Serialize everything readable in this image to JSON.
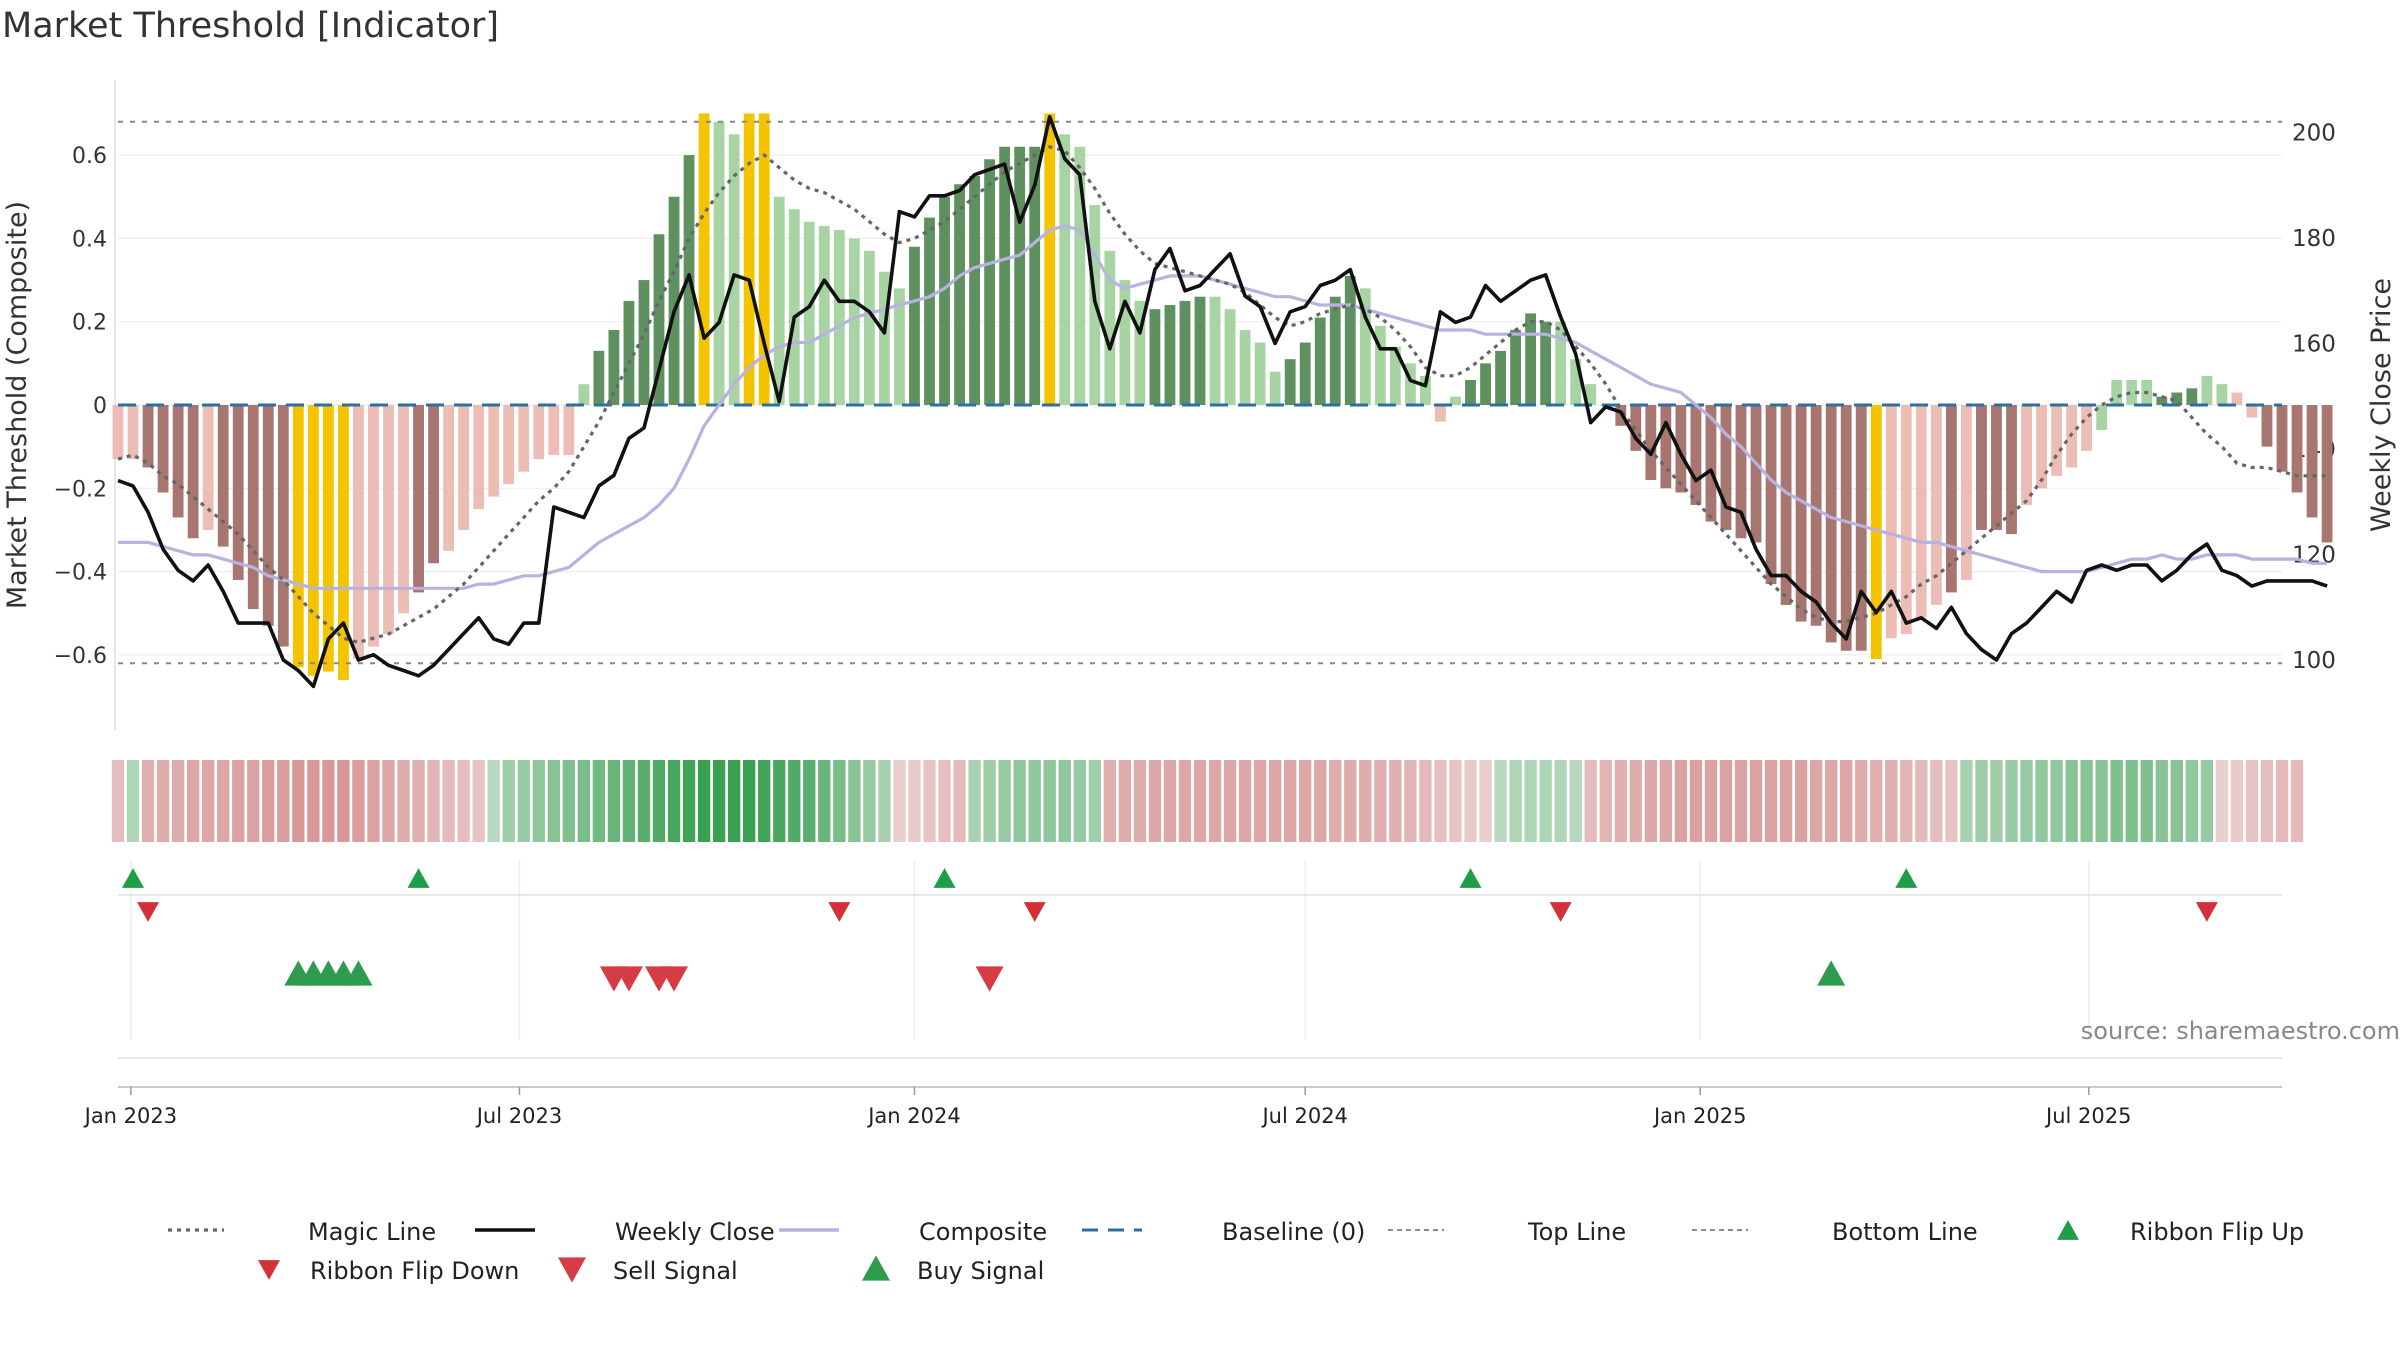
{
  "title": "Market Threshold [Indicator]",
  "source": "source: sharemaestro.com",
  "colors": {
    "up_strong": "#5f9160",
    "up_light": "#a8d4a3",
    "down_strong": "#a87670",
    "down_light": "#ecbdb5",
    "extreme": "#f5c400",
    "weekly_close": "#111111",
    "composite": "#b9b2e0",
    "magic_line": "#666666",
    "baseline": "#2f6f9f",
    "threshold_line": "#888888",
    "buy": "#2e9c4c",
    "sell": "#d63c45",
    "flip_up": "#1f9e48",
    "flip_down": "#d4303a"
  },
  "chart_data": {
    "type": "bar",
    "title": "Market Threshold [Indicator]",
    "ylabel": "Market Threshold (Composite)",
    "y2label": "Weekly Close Price",
    "ylim": [
      -0.78,
      0.78
    ],
    "y2lim": [
      88,
      212
    ],
    "x_range": [
      "2022-12-26",
      "2025-09-29"
    ],
    "yticks": [
      {
        "v": 0.6,
        "t": "0.6"
      },
      {
        "v": 0.4,
        "t": "0.4"
      },
      {
        "v": 0.2,
        "t": "0.2"
      },
      {
        "v": 0,
        "t": "0"
      },
      {
        "v": -0.2,
        "t": "−0.2"
      },
      {
        "v": -0.4,
        "t": "−0.4"
      },
      {
        "v": -0.6,
        "t": "−0.6"
      }
    ],
    "y2ticks": [
      {
        "v": 200,
        "t": "200"
      },
      {
        "v": 180,
        "t": "180"
      },
      {
        "v": 160,
        "t": "160"
      },
      {
        "v": 140,
        "t": "140"
      },
      {
        "v": 120,
        "t": "120"
      },
      {
        "v": 100,
        "t": "100"
      }
    ],
    "xticks": [
      {
        "d": "2023-01-01",
        "t": "Jan 2023"
      },
      {
        "d": "2023-07-01",
        "t": "Jul 2023"
      },
      {
        "d": "2024-01-01",
        "t": "Jan 2024"
      },
      {
        "d": "2024-07-01",
        "t": "Jul 2024"
      },
      {
        "d": "2025-01-01",
        "t": "Jan 2025"
      },
      {
        "d": "2025-07-01",
        "t": "Jul 2025"
      }
    ],
    "top_line": 0.68,
    "bottom_line": -0.62,
    "baseline": 0,
    "start_date": "2022-12-26",
    "week_step_days": 7,
    "composite_bars": [
      -0.13,
      -0.13,
      -0.15,
      -0.21,
      -0.27,
      -0.32,
      -0.3,
      -0.34,
      -0.42,
      -0.49,
      -0.53,
      -0.58,
      -0.63,
      -0.65,
      -0.64,
      -0.66,
      -0.61,
      -0.58,
      -0.55,
      -0.5,
      -0.45,
      -0.38,
      -0.35,
      -0.3,
      -0.25,
      -0.22,
      -0.19,
      -0.16,
      -0.13,
      -0.12,
      -0.12,
      0.05,
      0.13,
      0.18,
      0.25,
      0.3,
      0.41,
      0.5,
      0.6,
      0.7,
      0.68,
      0.65,
      0.7,
      0.7,
      0.5,
      0.47,
      0.44,
      0.43,
      0.42,
      0.4,
      0.37,
      0.32,
      0.28,
      0.38,
      0.45,
      0.5,
      0.53,
      0.55,
      0.59,
      0.62,
      0.62,
      0.62,
      0.7,
      0.65,
      0.62,
      0.48,
      0.37,
      0.3,
      0.25,
      0.23,
      0.24,
      0.25,
      0.26,
      0.26,
      0.23,
      0.18,
      0.15,
      0.08,
      0.11,
      0.15,
      0.21,
      0.26,
      0.31,
      0.28,
      0.19,
      0.14,
      0.1,
      0.07,
      -0.04,
      0.02,
      0.06,
      0.1,
      0.13,
      0.18,
      0.22,
      0.2,
      0.2,
      0.11,
      0.05,
      0.0,
      -0.05,
      -0.11,
      -0.18,
      -0.2,
      -0.21,
      -0.24,
      -0.28,
      -0.3,
      -0.32,
      -0.33,
      -0.43,
      -0.48,
      -0.52,
      -0.53,
      -0.57,
      -0.59,
      -0.59,
      -0.61,
      -0.56,
      -0.55,
      -0.51,
      -0.48,
      -0.45,
      -0.42,
      -0.3,
      -0.3,
      -0.31,
      -0.24,
      -0.2,
      -0.17,
      -0.15,
      -0.11,
      -0.06,
      0.06,
      0.06,
      0.06,
      0.02,
      0.03,
      0.04,
      0.07,
      0.05,
      0.03,
      -0.03,
      -0.1,
      -0.16,
      -0.21,
      -0.27,
      -0.33
    ],
    "bar_styles": [
      "dl",
      "dl",
      "ds",
      "ds",
      "ds",
      "ds",
      "dl",
      "ds",
      "ds",
      "ds",
      "ds",
      "ds",
      "ex",
      "ex",
      "ex",
      "ex",
      "dl",
      "dl",
      "dl",
      "dl",
      "ds",
      "ds",
      "dl",
      "dl",
      "dl",
      "dl",
      "dl",
      "dl",
      "dl",
      "dl",
      "dl",
      "ul",
      "us",
      "us",
      "us",
      "us",
      "us",
      "us",
      "us",
      "ex",
      "ul",
      "ul",
      "ex",
      "ex",
      "ul",
      "ul",
      "ul",
      "ul",
      "ul",
      "ul",
      "ul",
      "ul",
      "ul",
      "us",
      "us",
      "us",
      "us",
      "us",
      "us",
      "us",
      "us",
      "us",
      "ex",
      "ul",
      "ul",
      "ul",
      "ul",
      "ul",
      "ul",
      "us",
      "us",
      "us",
      "us",
      "ul",
      "ul",
      "ul",
      "ul",
      "ul",
      "us",
      "us",
      "us",
      "us",
      "us",
      "ul",
      "ul",
      "ul",
      "ul",
      "ul",
      "dl",
      "ul",
      "us",
      "us",
      "us",
      "us",
      "us",
      "us",
      "ul",
      "ul",
      "ul",
      "ds",
      "ds",
      "ds",
      "ds",
      "ds",
      "ds",
      "ds",
      "ds",
      "ds",
      "ds",
      "ds",
      "ds",
      "ds",
      "ds",
      "ds",
      "ds",
      "ds",
      "ds",
      "ex",
      "dl",
      "dl",
      "dl",
      "dl",
      "ds",
      "dl",
      "ds",
      "ds",
      "ds",
      "dl",
      "dl",
      "dl",
      "dl",
      "dl",
      "ul",
      "ul",
      "ul",
      "ul",
      "us",
      "us",
      "us",
      "ul",
      "ul",
      "dl",
      "dl",
      "ds",
      "ds",
      "ds",
      "ds",
      "ds"
    ],
    "weekly_close": [
      134,
      133,
      128,
      121,
      117,
      115,
      118,
      113,
      107,
      107,
      107,
      100,
      98,
      95,
      104,
      107,
      100,
      101,
      99,
      98,
      97,
      99,
      102,
      105,
      108,
      104,
      103,
      107,
      107,
      129,
      128,
      127,
      133,
      135,
      142,
      144,
      155,
      166,
      173,
      161,
      164,
      173,
      172,
      160,
      149,
      165,
      167,
      172,
      168,
      168,
      166,
      162,
      185,
      184,
      188,
      188,
      189,
      192,
      193,
      194,
      183,
      190,
      203,
      195,
      192,
      168,
      159,
      168,
      162,
      174,
      178,
      170,
      171,
      174,
      177,
      169,
      167,
      160,
      166,
      167,
      171,
      172,
      174,
      165,
      159,
      159,
      153,
      152,
      166,
      164,
      165,
      171,
      168,
      170,
      172,
      173,
      165,
      158,
      145,
      148,
      147,
      142,
      139,
      145,
      139,
      134,
      136,
      129,
      128,
      121,
      116,
      116,
      113,
      111,
      107,
      104,
      113,
      109,
      113,
      107,
      108,
      106,
      110,
      105,
      102,
      100,
      105,
      107,
      110,
      113,
      111,
      117,
      118,
      117,
      118,
      118,
      115,
      117,
      120,
      122,
      117,
      116,
      114,
      115,
      115,
      115,
      115,
      114
    ],
    "magic_line": [
      -0.13,
      -0.12,
      -0.14,
      -0.17,
      -0.19,
      -0.22,
      -0.25,
      -0.28,
      -0.31,
      -0.35,
      -0.39,
      -0.42,
      -0.46,
      -0.5,
      -0.53,
      -0.56,
      -0.57,
      -0.56,
      -0.55,
      -0.53,
      -0.51,
      -0.49,
      -0.46,
      -0.43,
      -0.39,
      -0.35,
      -0.31,
      -0.27,
      -0.23,
      -0.2,
      -0.16,
      -0.1,
      -0.04,
      0.03,
      0.1,
      0.17,
      0.25,
      0.32,
      0.4,
      0.46,
      0.51,
      0.55,
      0.58,
      0.6,
      0.57,
      0.54,
      0.52,
      0.51,
      0.49,
      0.47,
      0.44,
      0.41,
      0.39,
      0.4,
      0.42,
      0.44,
      0.47,
      0.5,
      0.53,
      0.56,
      0.58,
      0.6,
      0.62,
      0.61,
      0.57,
      0.52,
      0.46,
      0.41,
      0.37,
      0.34,
      0.33,
      0.32,
      0.31,
      0.3,
      0.29,
      0.27,
      0.24,
      0.21,
      0.19,
      0.2,
      0.22,
      0.23,
      0.24,
      0.23,
      0.21,
      0.18,
      0.14,
      0.09,
      0.07,
      0.07,
      0.09,
      0.12,
      0.15,
      0.18,
      0.2,
      0.2,
      0.18,
      0.14,
      0.1,
      0.05,
      -0.01,
      -0.06,
      -0.11,
      -0.15,
      -0.19,
      -0.23,
      -0.27,
      -0.31,
      -0.35,
      -0.39,
      -0.43,
      -0.46,
      -0.49,
      -0.51,
      -0.52,
      -0.52,
      -0.51,
      -0.5,
      -0.48,
      -0.46,
      -0.43,
      -0.41,
      -0.38,
      -0.35,
      -0.32,
      -0.29,
      -0.26,
      -0.23,
      -0.18,
      -0.12,
      -0.07,
      -0.03,
      0.0,
      0.02,
      0.03,
      0.03,
      0.02,
      0.01,
      -0.03,
      -0.07,
      -0.1,
      -0.14,
      -0.15,
      -0.15,
      -0.16,
      -0.17,
      -0.17,
      -0.17
    ],
    "composite_line": [
      -0.33,
      -0.33,
      -0.33,
      -0.34,
      -0.35,
      -0.36,
      -0.36,
      -0.37,
      -0.38,
      -0.39,
      -0.41,
      -0.42,
      -0.43,
      -0.44,
      -0.44,
      -0.44,
      -0.44,
      -0.44,
      -0.44,
      -0.44,
      -0.44,
      -0.44,
      -0.44,
      -0.44,
      -0.43,
      -0.43,
      -0.42,
      -0.41,
      -0.41,
      -0.4,
      -0.39,
      -0.36,
      -0.33,
      -0.31,
      -0.29,
      -0.27,
      -0.24,
      -0.2,
      -0.13,
      -0.05,
      0.0,
      0.05,
      0.09,
      0.12,
      0.14,
      0.15,
      0.15,
      0.17,
      0.19,
      0.21,
      0.22,
      0.23,
      0.24,
      0.25,
      0.26,
      0.28,
      0.31,
      0.33,
      0.34,
      0.35,
      0.36,
      0.39,
      0.42,
      0.43,
      0.42,
      0.36,
      0.3,
      0.28,
      0.29,
      0.3,
      0.31,
      0.31,
      0.31,
      0.3,
      0.29,
      0.28,
      0.27,
      0.26,
      0.26,
      0.25,
      0.24,
      0.24,
      0.24,
      0.23,
      0.22,
      0.21,
      0.2,
      0.19,
      0.18,
      0.18,
      0.18,
      0.17,
      0.17,
      0.17,
      0.17,
      0.17,
      0.16,
      0.15,
      0.13,
      0.11,
      0.09,
      0.07,
      0.05,
      0.04,
      0.03,
      0.0,
      -0.03,
      -0.07,
      -0.1,
      -0.14,
      -0.18,
      -0.21,
      -0.23,
      -0.25,
      -0.27,
      -0.28,
      -0.29,
      -0.3,
      -0.31,
      -0.32,
      -0.33,
      -0.33,
      -0.34,
      -0.35,
      -0.36,
      -0.37,
      -0.38,
      -0.39,
      -0.4,
      -0.4,
      -0.4,
      -0.4,
      -0.39,
      -0.38,
      -0.37,
      -0.37,
      -0.36,
      -0.37,
      -0.37,
      -0.36,
      -0.36,
      -0.36,
      -0.37,
      -0.37,
      -0.37,
      -0.37,
      -0.38,
      -0.38
    ],
    "ribbon": [
      -0.35,
      0.25,
      -0.5,
      -0.55,
      -0.55,
      -0.6,
      -0.6,
      -0.6,
      -0.65,
      -0.65,
      -0.7,
      -0.7,
      -0.75,
      -0.75,
      -0.75,
      -0.75,
      -0.7,
      -0.65,
      -0.6,
      -0.55,
      -0.5,
      -0.45,
      -0.4,
      -0.35,
      -0.3,
      0.2,
      0.35,
      0.4,
      0.45,
      0.5,
      0.55,
      0.6,
      0.65,
      0.7,
      0.75,
      0.8,
      0.85,
      0.9,
      0.95,
      1.0,
      1.0,
      1.0,
      1.0,
      0.95,
      0.9,
      0.85,
      0.8,
      0.7,
      0.6,
      0.5,
      0.4,
      0.3,
      -0.2,
      -0.25,
      -0.3,
      -0.35,
      -0.4,
      0.3,
      0.35,
      0.4,
      0.45,
      0.45,
      0.45,
      0.45,
      0.4,
      0.35,
      -0.5,
      -0.55,
      -0.55,
      -0.6,
      -0.6,
      -0.6,
      -0.6,
      -0.6,
      -0.6,
      -0.6,
      -0.6,
      -0.6,
      -0.6,
      -0.6,
      -0.6,
      -0.55,
      -0.55,
      -0.55,
      -0.5,
      -0.5,
      -0.45,
      -0.4,
      -0.35,
      -0.3,
      -0.25,
      -0.2,
      0.2,
      0.25,
      0.25,
      0.25,
      0.25,
      0.2,
      -0.4,
      -0.45,
      -0.5,
      -0.55,
      -0.6,
      -0.6,
      -0.65,
      -0.65,
      -0.65,
      -0.65,
      -0.65,
      -0.65,
      -0.65,
      -0.65,
      -0.65,
      -0.6,
      -0.6,
      -0.6,
      -0.55,
      -0.5,
      -0.5,
      -0.45,
      -0.4,
      -0.35,
      -0.3,
      0.3,
      0.35,
      0.35,
      0.4,
      0.4,
      0.45,
      0.45,
      0.5,
      0.5,
      0.5,
      0.55,
      0.55,
      0.55,
      0.5,
      0.5,
      0.45,
      0.4,
      -0.2,
      -0.25,
      -0.3,
      -0.35,
      -0.4,
      -0.4
    ],
    "ribbon_flip_up": [
      "2023-01-02",
      "2023-05-15",
      "2024-01-15",
      "2024-09-16",
      "2025-04-07"
    ],
    "ribbon_flip_down": [
      "2023-01-09",
      "2023-11-27",
      "2024-02-26",
      "2024-10-28",
      "2025-08-25"
    ],
    "buy_signals": [
      "2023-03-20",
      "2023-03-27",
      "2023-04-03",
      "2023-04-10",
      "2023-04-17",
      "2025-03-03"
    ],
    "sell_signals": [
      "2023-08-14",
      "2023-08-21",
      "2023-09-04",
      "2023-09-11",
      "2024-02-05"
    ],
    "legend": [
      {
        "key": "magic",
        "label": "Magic Line"
      },
      {
        "key": "close",
        "label": "Weekly Close"
      },
      {
        "key": "composite",
        "label": "Composite"
      },
      {
        "key": "baseline",
        "label": "Baseline (0)"
      },
      {
        "key": "top",
        "label": "Top Line"
      },
      {
        "key": "bottom",
        "label": "Bottom Line"
      },
      {
        "key": "flipup",
        "label": "Ribbon Flip Up"
      },
      {
        "key": "flipdown",
        "label": "Ribbon Flip Down"
      },
      {
        "key": "sell",
        "label": "Sell Signal"
      },
      {
        "key": "buy",
        "label": "Buy Signal"
      }
    ]
  }
}
